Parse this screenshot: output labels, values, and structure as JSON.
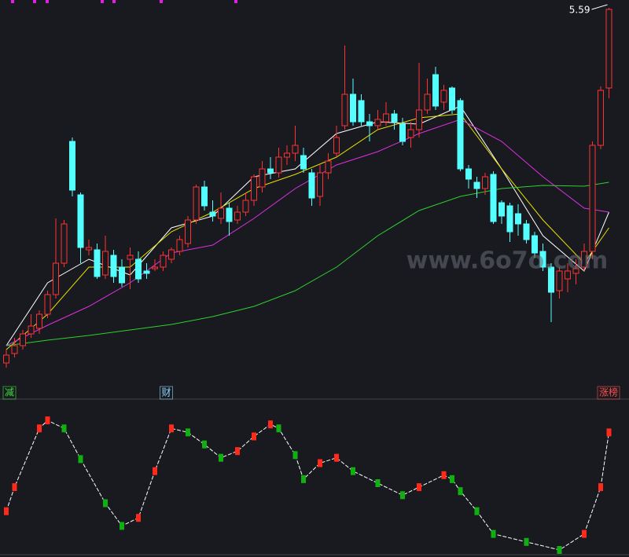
{
  "chart_data": [
    {
      "type": "candlestick",
      "annotation": "5.59",
      "ylim": [
        3.19,
        5.64
      ],
      "up_color": "#ff3232",
      "down_color": "#54ffff",
      "open": [
        3.33,
        3.39,
        3.44,
        3.515,
        3.55,
        3.64,
        3.765,
        3.965,
        4.74,
        4.4,
        4.05,
        4.05,
        3.89,
        4.015,
        3.94,
        3.99,
        3.99,
        3.915,
        3.93,
        3.94,
        3.99,
        4.04,
        4.09,
        4.24,
        4.45,
        4.29,
        4.25,
        4.315,
        4.24,
        4.29,
        4.365,
        4.45,
        4.565,
        4.54,
        4.64,
        4.665,
        4.65,
        4.54,
        4.39,
        4.54,
        4.665,
        4.84,
        5.04,
        5.0,
        4.865,
        4.84,
        4.865,
        4.915,
        4.85,
        4.765,
        4.815,
        4.94,
        5.165,
        4.99,
        5.08,
        5.0,
        4.565,
        4.48,
        4.44,
        4.53,
        4.35,
        4.33,
        4.28,
        4.215,
        4.14,
        4.04,
        3.94,
        3.79,
        3.865,
        3.9,
        3.94,
        4.04,
        4.715,
        5.08
      ],
      "high": [
        3.415,
        3.49,
        3.54,
        3.64,
        3.665,
        3.79,
        4.25,
        4.24,
        4.765,
        4.415,
        4.115,
        4.09,
        4.14,
        4.05,
        3.99,
        4.065,
        4.04,
        3.965,
        3.99,
        4.04,
        4.065,
        4.14,
        4.265,
        4.465,
        4.49,
        4.365,
        4.415,
        4.35,
        4.33,
        4.415,
        4.53,
        4.615,
        4.64,
        4.7,
        4.715,
        4.84,
        4.7,
        4.565,
        4.59,
        4.665,
        4.84,
        5.35,
        5.14,
        5.04,
        4.915,
        4.94,
        4.99,
        4.94,
        4.89,
        4.865,
        5.24,
        5.14,
        5.215,
        5.1,
        5.09,
        5.015,
        4.59,
        4.515,
        4.54,
        4.55,
        4.365,
        4.35,
        4.34,
        4.24,
        4.165,
        4.09,
        3.965,
        3.94,
        3.965,
        3.99,
        4.09,
        4.74,
        5.09,
        5.59
      ],
      "low": [
        3.3,
        3.365,
        3.415,
        3.49,
        3.515,
        3.615,
        3.74,
        3.94,
        4.39,
        3.965,
        4.015,
        3.865,
        3.865,
        3.84,
        3.815,
        3.8,
        3.84,
        3.865,
        3.915,
        3.915,
        3.965,
        4.015,
        4.065,
        4.215,
        4.3,
        4.23,
        4.215,
        4.14,
        4.215,
        4.265,
        4.33,
        4.415,
        4.5,
        4.51,
        4.59,
        4.615,
        4.54,
        4.33,
        4.33,
        4.5,
        4.64,
        4.815,
        4.84,
        4.84,
        4.74,
        4.815,
        4.84,
        4.815,
        4.715,
        4.7,
        4.765,
        4.915,
        4.94,
        4.94,
        4.915,
        4.55,
        4.44,
        4.38,
        4.4,
        4.215,
        4.215,
        4.1,
        4.14,
        4.09,
        4.0,
        3.915,
        3.59,
        3.74,
        3.78,
        3.83,
        3.915,
        3.99,
        4.69,
        5.015
      ],
      "close": [
        3.38,
        3.44,
        3.515,
        3.565,
        3.64,
        3.765,
        3.965,
        4.215,
        4.43,
        4.065,
        4.065,
        3.88,
        4.04,
        3.88,
        3.84,
        4.015,
        3.865,
        3.9,
        3.94,
        4.015,
        4.05,
        4.115,
        4.24,
        4.45,
        4.33,
        4.265,
        4.315,
        4.23,
        4.29,
        4.365,
        4.515,
        4.565,
        4.54,
        4.64,
        4.665,
        4.715,
        4.565,
        4.38,
        4.54,
        4.615,
        4.765,
        5.04,
        4.865,
        4.865,
        4.84,
        4.88,
        4.915,
        4.865,
        4.74,
        4.815,
        4.94,
        5.04,
        4.965,
        5.065,
        4.94,
        4.565,
        4.5,
        4.44,
        4.515,
        4.23,
        4.265,
        4.165,
        4.215,
        4.115,
        4.03,
        3.94,
        3.78,
        3.915,
        3.915,
        3.93,
        4.04,
        4.715,
        5.065,
        5.58
      ],
      "series": [
        {
          "color": "#ffffff",
          "x": [
            0,
            5,
            10,
            15,
            20,
            25,
            30,
            35,
            40,
            45,
            50,
            55,
            60,
            65,
            70,
            73
          ],
          "values": [
            3.44,
            3.84,
            3.99,
            3.89,
            4.19,
            4.265,
            4.515,
            4.565,
            4.79,
            4.865,
            4.85,
            4.965,
            4.565,
            4.14,
            3.915,
            4.29
          ]
        },
        {
          "color": "#e8e000",
          "x": [
            0,
            5,
            10,
            15,
            20,
            25,
            30,
            35,
            40,
            45,
            50,
            55,
            60,
            65,
            70,
            73
          ],
          "values": [
            3.415,
            3.64,
            3.94,
            3.94,
            4.165,
            4.29,
            4.44,
            4.53,
            4.64,
            4.815,
            4.89,
            4.915,
            4.565,
            4.24,
            3.965,
            4.19
          ]
        },
        {
          "color": "#e030e0",
          "x": [
            0,
            5,
            10,
            15,
            20,
            25,
            30,
            35,
            40,
            45,
            50,
            55,
            60,
            65,
            70,
            73
          ],
          "values": [
            3.44,
            3.57,
            3.69,
            3.84,
            4.03,
            4.08,
            4.25,
            4.44,
            4.59,
            4.675,
            4.79,
            4.88,
            4.74,
            4.515,
            4.315,
            4.29
          ]
        },
        {
          "color": "#30d030",
          "x": [
            0,
            5,
            10,
            15,
            20,
            25,
            30,
            35,
            40,
            45,
            50,
            55,
            60,
            65,
            70,
            73
          ],
          "values": [
            3.44,
            3.475,
            3.505,
            3.54,
            3.575,
            3.625,
            3.69,
            3.79,
            3.94,
            4.14,
            4.3,
            4.39,
            4.44,
            4.46,
            4.455,
            4.48
          ]
        }
      ],
      "event_labels": [
        {
          "x": 0,
          "text": "减",
          "color": "#40e040"
        },
        {
          "x": 19,
          "text": "财",
          "color": "#8fd8ff"
        },
        {
          "x": 72,
          "text": "涨榜",
          "color": "#ff5050"
        }
      ]
    },
    {
      "type": "line",
      "ylim": [
        0,
        100
      ],
      "up_color": "#ff2a1a",
      "down_color": "#10b010",
      "x": [
        0,
        1,
        4,
        5,
        7,
        9,
        12,
        14,
        16,
        18,
        20,
        22,
        24,
        26,
        28,
        30,
        32,
        33,
        35,
        36,
        38,
        40,
        42,
        45,
        48,
        50,
        53,
        54,
        55,
        57,
        59,
        63,
        67,
        70,
        72,
        73
      ],
      "values": [
        29,
        47,
        91,
        97,
        91,
        68,
        35,
        18,
        24,
        59,
        91,
        88,
        79,
        69,
        74,
        85,
        94,
        91,
        71,
        53,
        65,
        69,
        59,
        50,
        41,
        47,
        56,
        53,
        44,
        29,
        12,
        6,
        0,
        12,
        47,
        88
      ]
    }
  ],
  "watermark": "www.6o7o.com"
}
